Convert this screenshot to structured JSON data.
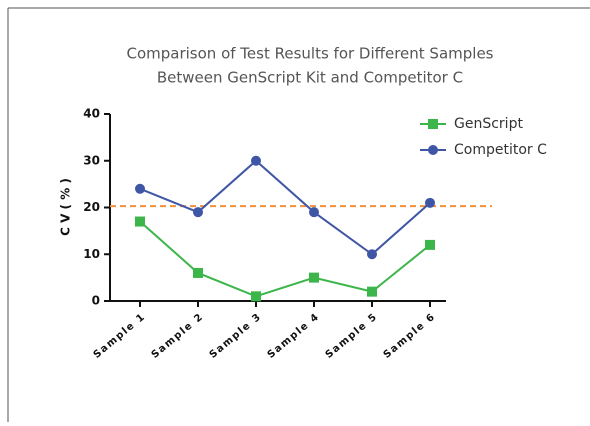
{
  "chart_data": {
    "type": "line",
    "title": [
      "Comparison of Test Results for Different Samples",
      "Between GenScript Kit and Competitor C"
    ],
    "y_label": "C V ( % )",
    "categories": [
      "Sample 1",
      "Sample 2",
      "Sample 3",
      "Sample 4",
      "Sample 5",
      "Sample 6"
    ],
    "series": [
      {
        "name": "GenScript",
        "color": "#3cb54a",
        "marker": "square",
        "values": [
          17,
          6,
          1,
          5,
          2,
          12
        ]
      },
      {
        "name": "Competitor C",
        "color": "#3f56a6",
        "marker": "circle",
        "values": [
          24,
          19,
          30,
          19,
          10,
          21
        ]
      }
    ],
    "reference_line": {
      "value": 20.3,
      "color": "#f0913a"
    },
    "ylim": [
      0,
      40
    ],
    "yticks": [
      0,
      10,
      20,
      30,
      40
    ],
    "legend": "upper right"
  }
}
